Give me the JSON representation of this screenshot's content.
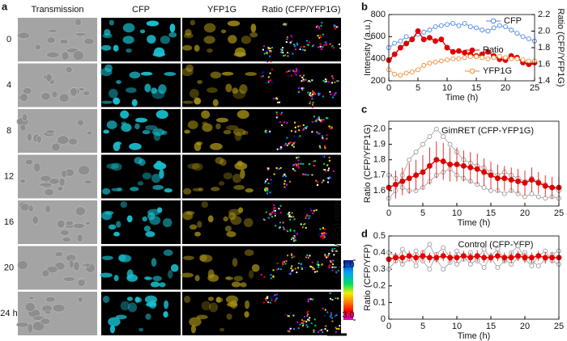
{
  "figure": {
    "panel_a": {
      "label": "a",
      "columns": [
        "Transmission",
        "CFP",
        "YFP1G",
        "Ratio (CFP/YFP1G)"
      ],
      "rows": [
        "0",
        "4",
        "8",
        "12",
        "16",
        "20",
        "24 h"
      ],
      "colorbar": {
        "label": "Ratio (CFP/YFP1G)",
        "lim": [
          1,
          3
        ],
        "ticks": [
          {
            "value": 1,
            "label": "1.0"
          },
          {
            "value": 3,
            "label": "3.0"
          }
        ]
      }
    }
  },
  "chart_data": [
    {
      "type": "line",
      "label": "b",
      "xlabel": "Time (h)",
      "ylabel": "Intensity (a.u.)",
      "y2label": "Ratio (CFP/YFP1G)",
      "x": [
        0,
        1,
        2,
        3,
        4,
        5,
        6,
        7,
        8,
        9,
        10,
        11,
        12,
        13,
        14,
        15,
        16,
        17,
        18,
        19,
        20,
        21,
        22,
        23,
        24,
        25
      ],
      "xlim": [
        0,
        25
      ],
      "xticks": [
        0,
        5,
        10,
        15,
        20,
        25
      ],
      "ylim": [
        200,
        800
      ],
      "yticks": [
        200,
        400,
        600,
        800
      ],
      "y2lim": [
        1.4,
        2.2
      ],
      "y2ticks": [
        1.4,
        1.6,
        1.8,
        {
          "value": 2,
          "label": "2.0"
        },
        2.2
      ],
      "series": [
        {
          "name": "CFP",
          "color": "#4a86e8",
          "marker": "open",
          "values": [
            500,
            540,
            560,
            600,
            580,
            620,
            640,
            660,
            690,
            700,
            710,
            720,
            700,
            720,
            690,
            680,
            660,
            650,
            680,
            700,
            690,
            660,
            630,
            600,
            580,
            560
          ]
        },
        {
          "name": "Ratio",
          "color": "#e00000",
          "marker": "filled",
          "axis": "y2",
          "values": [
            1.65,
            1.72,
            1.8,
            1.85,
            1.9,
            2.0,
            1.9,
            1.92,
            1.88,
            1.9,
            1.8,
            1.75,
            1.76,
            1.74,
            1.72,
            1.7,
            1.72,
            1.75,
            1.7,
            1.66,
            1.65,
            1.7,
            1.68,
            1.62,
            1.6,
            1.62
          ]
        },
        {
          "name": "YFP1G",
          "color": "#f08a30",
          "marker": "open",
          "values": [
            300,
            260,
            250,
            270,
            280,
            300,
            340,
            360,
            370,
            380,
            390,
            400,
            400,
            410,
            420,
            420,
            410,
            400,
            410,
            420,
            410,
            400,
            400,
            390,
            380,
            380
          ]
        }
      ]
    },
    {
      "type": "line",
      "label": "c",
      "xlabel": "Time (h)",
      "ylabel": "Ratio (CFP/YFP1G)",
      "annotation": "GimRET (CFP-YFP1G)",
      "x": [
        0,
        1,
        2,
        3,
        4,
        5,
        6,
        7,
        8,
        9,
        10,
        11,
        12,
        13,
        14,
        15,
        16,
        17,
        18,
        19,
        20,
        21,
        22,
        23,
        24,
        25
      ],
      "xlim": [
        0,
        25
      ],
      "xticks": [
        0,
        5,
        10,
        15,
        20,
        25
      ],
      "ylim": [
        1.5,
        2.05
      ],
      "yticks": [
        1.6,
        1.7,
        1.8,
        1.9,
        {
          "value": 2,
          "label": "2.0"
        }
      ],
      "series": [
        {
          "color": "#9a9a9a",
          "marker": "open",
          "values": [
            1.55,
            1.6,
            1.7,
            1.8,
            1.85,
            1.9,
            1.95,
            2.0,
            1.95,
            1.9,
            1.85,
            1.8,
            1.78,
            1.76,
            1.75,
            1.72,
            1.7,
            1.72,
            1.7,
            1.68,
            1.66,
            1.68,
            1.66,
            1.64,
            1.62,
            1.6
          ]
        },
        {
          "color": "#9a9a9a",
          "marker": "open",
          "values": [
            1.7,
            1.68,
            1.62,
            1.6,
            1.6,
            1.62,
            1.66,
            1.7,
            1.72,
            1.74,
            1.7,
            1.68,
            1.66,
            1.64,
            1.62,
            1.6,
            1.6,
            1.58,
            1.6,
            1.58,
            1.56,
            1.58,
            1.56,
            1.55,
            1.56,
            1.55
          ]
        },
        {
          "color": "#e00000",
          "marker": "filled",
          "values": [
            1.62,
            1.64,
            1.66,
            1.68,
            1.7,
            1.72,
            1.76,
            1.8,
            1.79,
            1.77,
            1.77,
            1.76,
            1.75,
            1.74,
            1.72,
            1.7,
            1.68,
            1.68,
            1.67,
            1.66,
            1.65,
            1.67,
            1.65,
            1.63,
            1.62,
            1.62
          ],
          "errors": [
            0.08,
            0.09,
            0.09,
            0.1,
            0.1,
            0.11,
            0.12,
            0.12,
            0.12,
            0.11,
            0.11,
            0.1,
            0.1,
            0.1,
            0.09,
            0.09,
            0.09,
            0.08,
            0.08,
            0.08,
            0.08,
            0.08,
            0.07,
            0.07,
            0.07,
            0.07
          ]
        }
      ]
    },
    {
      "type": "line",
      "label": "d",
      "xlabel": "Time (h)",
      "ylabel": "Ratio (CFP/YFP)",
      "annotation": "Control (CFP-YFP)",
      "x": [
        0,
        1,
        2,
        3,
        4,
        5,
        6,
        7,
        8,
        9,
        10,
        11,
        12,
        13,
        14,
        15,
        16,
        17,
        18,
        19,
        20,
        21,
        22,
        23,
        24,
        25
      ],
      "xlim": [
        0,
        25
      ],
      "xticks": [
        0,
        5,
        10,
        15,
        20,
        25
      ],
      "ylim": [
        0,
        0.5
      ],
      "yticks": [
        0,
        0.1,
        0.2,
        0.3,
        0.4,
        0.5
      ],
      "series": [
        {
          "color": "#9a9a9a",
          "marker": "open",
          "values": [
            0.3,
            0.35,
            0.42,
            0.38,
            0.32,
            0.4,
            0.45,
            0.36,
            0.3,
            0.34,
            0.41,
            0.38,
            0.33,
            0.36,
            0.42,
            0.37,
            0.31,
            0.35,
            0.4,
            0.44,
            0.36,
            0.32,
            0.38,
            0.41,
            0.35,
            0.33
          ]
        },
        {
          "color": "#9a9a9a",
          "marker": "open",
          "values": [
            0.4,
            0.38,
            0.33,
            0.36,
            0.41,
            0.35,
            0.3,
            0.39,
            0.43,
            0.37,
            0.33,
            0.36,
            0.4,
            0.35,
            0.31,
            0.38,
            0.42,
            0.36,
            0.33,
            0.37,
            0.4,
            0.35,
            0.32,
            0.36,
            0.39,
            0.41
          ]
        },
        {
          "color": "#e00000",
          "marker": "filled",
          "values": [
            0.36,
            0.37,
            0.37,
            0.38,
            0.37,
            0.38,
            0.37,
            0.37,
            0.38,
            0.37,
            0.37,
            0.38,
            0.37,
            0.38,
            0.37,
            0.37,
            0.38,
            0.37,
            0.37,
            0.38,
            0.37,
            0.37,
            0.38,
            0.37,
            0.37,
            0.37
          ],
          "errors": [
            0.03,
            0.03,
            0.035,
            0.03,
            0.03,
            0.035,
            0.03,
            0.03,
            0.03,
            0.035,
            0.03,
            0.03,
            0.03,
            0.035,
            0.03,
            0.03,
            0.03,
            0.03,
            0.035,
            0.03,
            0.03,
            0.03,
            0.03,
            0.035,
            0.03,
            0.03
          ]
        }
      ]
    }
  ]
}
